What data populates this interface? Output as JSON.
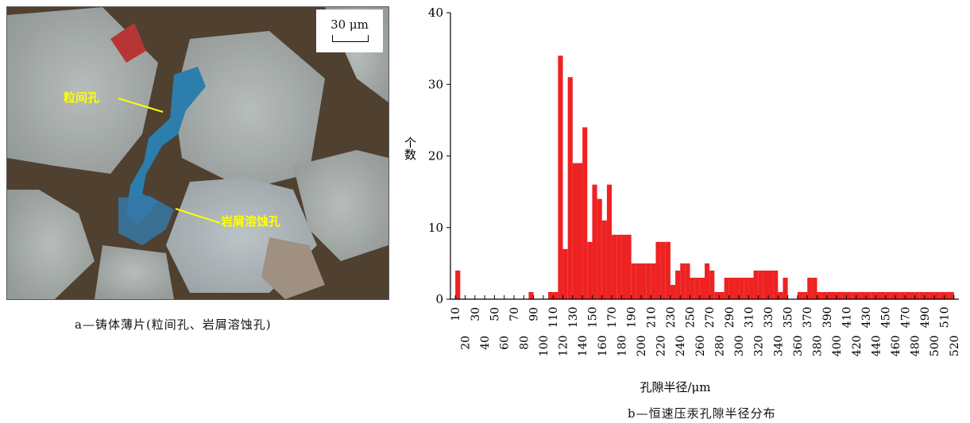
{
  "panel_a": {
    "scale_label": "30 μm",
    "annotations": [
      "粒间孔",
      "岩屑溶蚀孔"
    ],
    "caption": "a—铸体薄片(粒间孔、岩屑溶蚀孔)"
  },
  "panel_b": {
    "caption": "b—恒速压汞孔隙半径分布"
  },
  "chart_data": {
    "type": "bar",
    "xlabel": "孔隙半径/μm",
    "ylabel": "个数",
    "ylim": [
      0,
      40
    ],
    "yticks": [
      0,
      10,
      20,
      30,
      40
    ],
    "xticks_odd": [
      "10",
      "30",
      "50",
      "70",
      "90",
      "110",
      "130",
      "150",
      "170",
      "190",
      "210",
      "230",
      "250",
      "270",
      "290",
      "310",
      "330",
      "350",
      "370",
      "390",
      "410",
      "430",
      "450",
      "470",
      "490",
      "510"
    ],
    "xticks_even": [
      "20",
      "40",
      "60",
      "80",
      "100",
      "120",
      "140",
      "160",
      "180",
      "200",
      "220",
      "240",
      "260",
      "280",
      "300",
      "320",
      "340",
      "360",
      "380",
      "400",
      "420",
      "440",
      "460",
      "480",
      "500",
      "520"
    ],
    "bar_color": "#ee2222",
    "bins": [
      5,
      10,
      15,
      20,
      25,
      30,
      35,
      40,
      45,
      50,
      55,
      60,
      65,
      70,
      75,
      80,
      85,
      90,
      95,
      100,
      105,
      110,
      115,
      120,
      125,
      130,
      135,
      140,
      145,
      150,
      155,
      160,
      165,
      170,
      175,
      180,
      185,
      190,
      195,
      200,
      205,
      210,
      215,
      220,
      225,
      230,
      235,
      240,
      245,
      250,
      255,
      260,
      265,
      270,
      275,
      280,
      285,
      290,
      295,
      300,
      305,
      310,
      315,
      320,
      325,
      330,
      335,
      340,
      345,
      350,
      355,
      360,
      365,
      370,
      375,
      380,
      385,
      390,
      395,
      400,
      405,
      410,
      415,
      420,
      425,
      430,
      435,
      440,
      445,
      450,
      455,
      460,
      465,
      470,
      475,
      480,
      485,
      490,
      495,
      500,
      505,
      510
    ],
    "values": [
      4,
      0,
      0,
      0,
      0,
      0,
      0,
      0,
      0,
      0,
      0,
      0,
      0,
      0,
      0,
      1,
      0,
      0,
      0,
      1,
      1,
      34,
      7,
      31,
      19,
      19,
      24,
      8,
      16,
      14,
      11,
      16,
      9,
      9,
      9,
      9,
      5,
      5,
      5,
      5,
      5,
      8,
      8,
      8,
      2,
      4,
      5,
      5,
      3,
      3,
      3,
      5,
      4,
      1,
      1,
      3,
      3,
      3,
      3,
      3,
      3,
      4,
      4,
      4,
      4,
      4,
      1,
      3,
      0,
      0,
      1,
      1,
      3,
      3,
      1,
      1,
      1,
      1,
      1,
      1,
      1,
      1,
      1,
      1,
      1,
      1,
      1,
      1,
      1,
      1,
      1,
      1,
      1,
      1,
      1,
      1,
      1,
      1,
      1,
      1,
      1,
      1
    ]
  }
}
